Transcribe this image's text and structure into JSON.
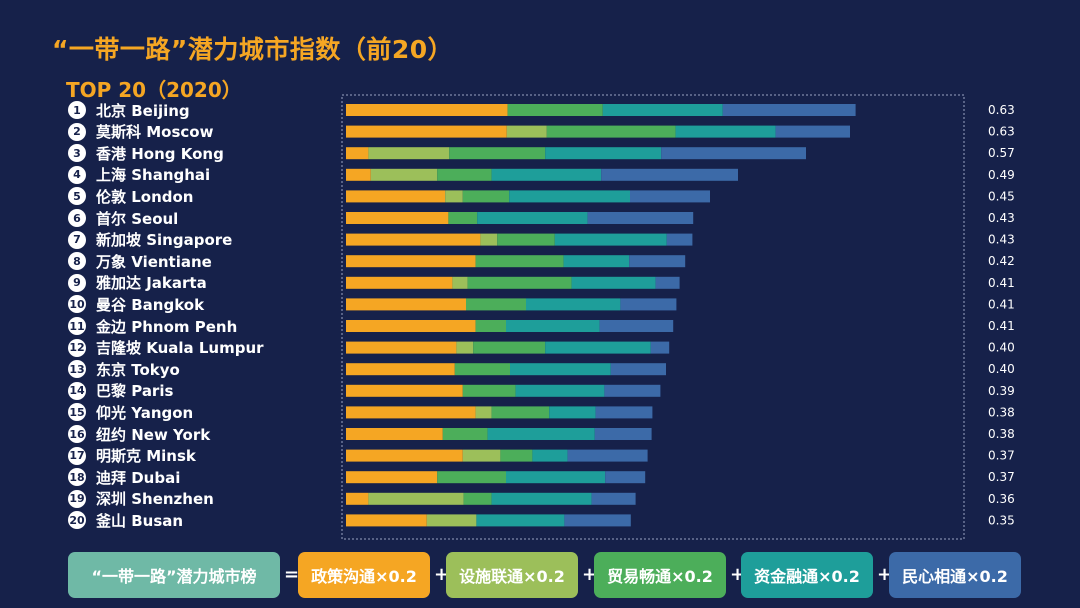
{
  "title": "“一带一路”潜力城市指数（前20）",
  "subtitle": "TOP 20（2020）",
  "colors": {
    "background": "#16214a",
    "accent": "#f5a623",
    "policy": "#f5a623",
    "facilities": "#9cbf5a",
    "trade": "#4cae5a",
    "finance": "#1e9e9a",
    "people": "#3c6aa8",
    "formula_total": "#6fb9a6"
  },
  "formula": {
    "total": "“一带一路”潜力城市榜",
    "eq": "=",
    "plus": "+",
    "components": [
      {
        "key": "policy",
        "label": "政策沟通×0.2"
      },
      {
        "key": "facilities",
        "label": "设施联通×0.2"
      },
      {
        "key": "trade",
        "label": "贸易畅通×0.2"
      },
      {
        "key": "finance",
        "label": "资金融通×0.2"
      },
      {
        "key": "people",
        "label": "民心相通×0.2"
      }
    ]
  },
  "chart_data": {
    "type": "bar",
    "orientation": "horizontal",
    "stacked": true,
    "title": "“一带一路”潜力城市指数（前20）",
    "subtitle": "TOP 20（2020）",
    "ranks": [
      "1",
      "2",
      "3",
      "4",
      "5",
      "6",
      "7",
      "8",
      "9",
      "10",
      "11",
      "12",
      "13",
      "14",
      "15",
      "16",
      "17",
      "18",
      "19",
      "20"
    ],
    "categories": [
      "北京 Beijing",
      "莫斯科 Moscow",
      "香港 Hong Kong",
      "上海 Shanghai",
      "伦敦 London",
      "首尔 Seoul",
      "新加坡 Singapore",
      "万象 Vientiane",
      "雅加达 Jakarta",
      "曼谷 Bangkok",
      "金边 Phnom Penh",
      "吉隆坡 Kuala Lumpur",
      "东京 Tokyo",
      "巴黎 Paris",
      "仰光 Yangon",
      "纽约 New York",
      "明斯克 Minsk",
      "迪拜 Dubai",
      "深圳 Shenzhen",
      "釜山 Busan"
    ],
    "totals": [
      "0.63",
      "0.63",
      "0.57",
      "0.49",
      "0.45",
      "0.43",
      "0.43",
      "0.42",
      "0.41",
      "0.41",
      "0.41",
      "0.40",
      "0.40",
      "0.39",
      "0.38",
      "0.38",
      "0.37",
      "0.37",
      "0.36",
      "0.35"
    ],
    "segment_keys": [
      "policy",
      "facilities",
      "trade",
      "finance",
      "people"
    ],
    "segments": [
      [
        0.202,
        0.0,
        0.119,
        0.15,
        0.166
      ],
      [
        0.201,
        0.05,
        0.161,
        0.125,
        0.093
      ],
      [
        0.028,
        0.101,
        0.12,
        0.145,
        0.181
      ],
      [
        0.031,
        0.083,
        0.068,
        0.137,
        0.171
      ],
      [
        0.124,
        0.022,
        0.058,
        0.151,
        0.1
      ],
      [
        0.128,
        0.0,
        0.036,
        0.138,
        0.132
      ],
      [
        0.168,
        0.021,
        0.072,
        0.14,
        0.032
      ],
      [
        0.162,
        0.0,
        0.11,
        0.082,
        0.07
      ],
      [
        0.133,
        0.019,
        0.13,
        0.105,
        0.03
      ],
      [
        0.15,
        0.0,
        0.075,
        0.118,
        0.07
      ],
      [
        0.162,
        0.0,
        0.038,
        0.117,
        0.092
      ],
      [
        0.138,
        0.021,
        0.09,
        0.132,
        0.023
      ],
      [
        0.136,
        0.0,
        0.069,
        0.126,
        0.069
      ],
      [
        0.146,
        0.0,
        0.066,
        0.111,
        0.07
      ],
      [
        0.162,
        0.02,
        0.072,
        0.058,
        0.071
      ],
      [
        0.121,
        0.0,
        0.056,
        0.134,
        0.071
      ],
      [
        0.146,
        0.047,
        0.04,
        0.044,
        0.1
      ],
      [
        0.114,
        0.0,
        0.086,
        0.124,
        0.05
      ],
      [
        0.028,
        0.119,
        0.035,
        0.125,
        0.055
      ],
      [
        0.101,
        0.062,
        0.0,
        0.11,
        0.083
      ]
    ],
    "xlim": [
      0,
      0.8
    ],
    "grid": false
  }
}
